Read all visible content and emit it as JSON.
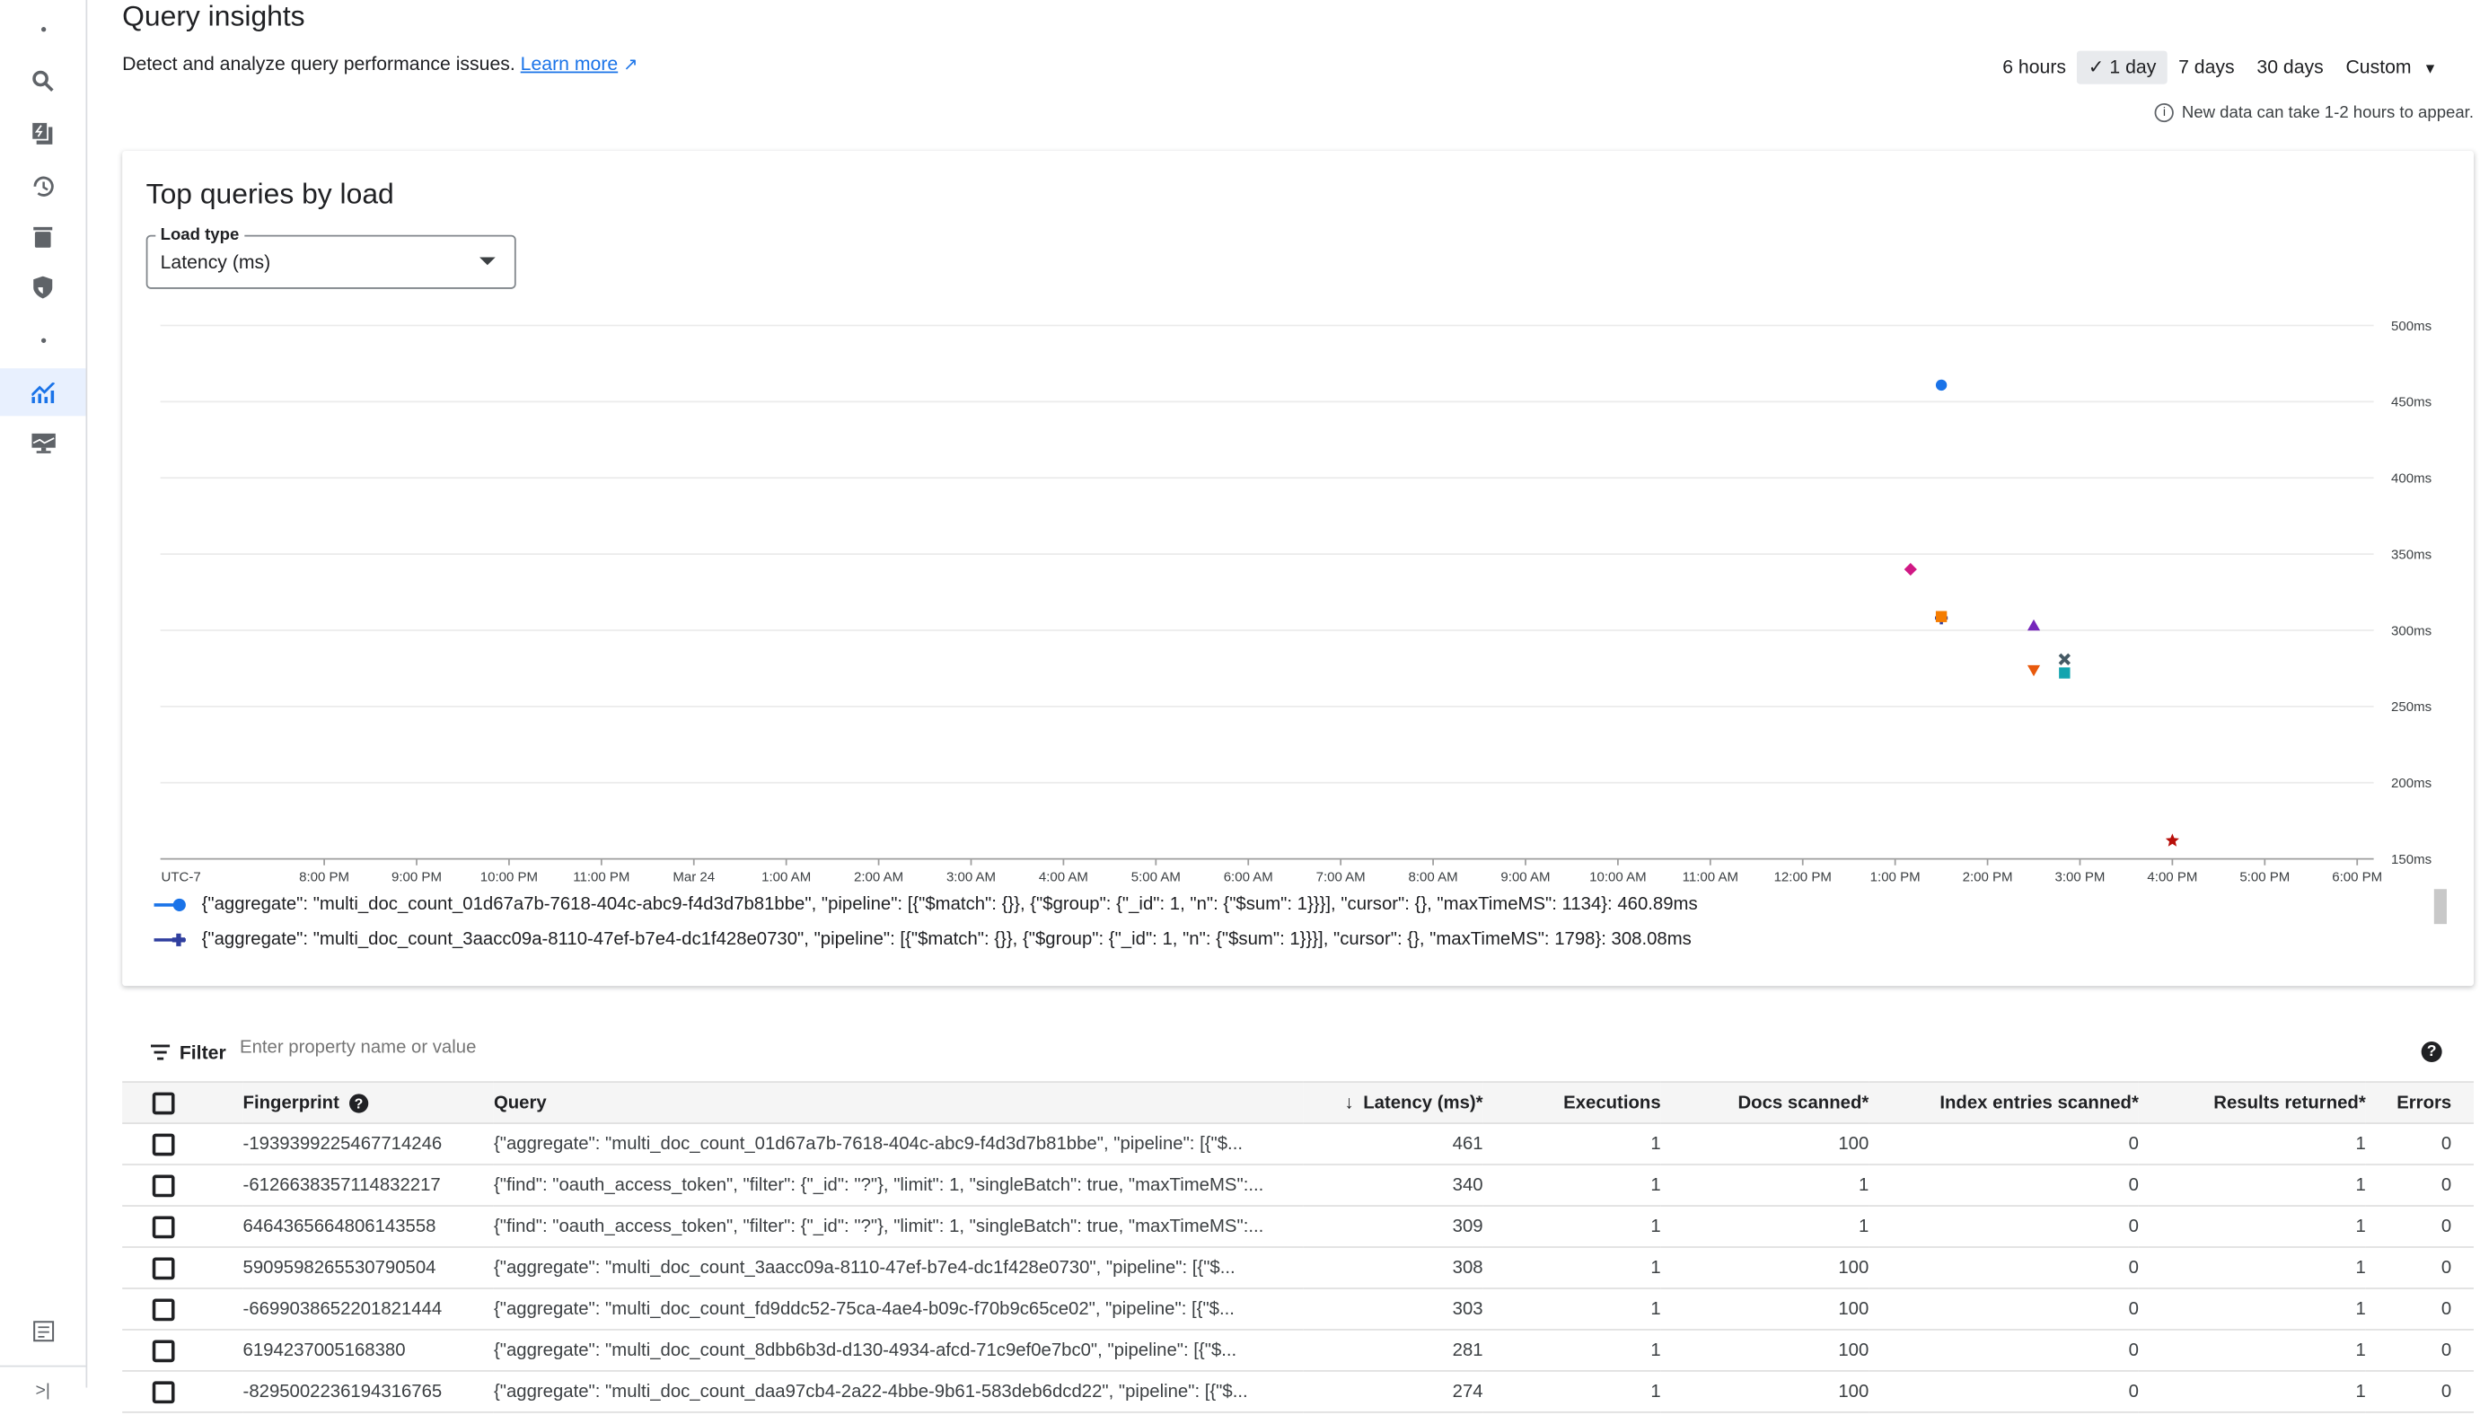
{
  "sidebar": {
    "items": [
      "more",
      "search",
      "quick-actions",
      "history",
      "delete",
      "security",
      "more2",
      "query-insights",
      "monitoring"
    ],
    "active": "query-insights",
    "bottom": [
      "release-notes",
      "expand"
    ]
  },
  "header": {
    "title": "Query insights",
    "subtitle": "Detect and analyze query performance issues.",
    "learn_more": "Learn more"
  },
  "time_ranges": {
    "options": [
      "6 hours",
      "1 day",
      "7 days",
      "30 days",
      "Custom"
    ],
    "selected": "1 day"
  },
  "info_note": "New data can take 1-2 hours to appear.",
  "card": {
    "title": "Top queries by load",
    "load_type_label": "Load type",
    "load_type_value": "Latency (ms)"
  },
  "chart_data": {
    "type": "scatter",
    "ylabel": "",
    "xlabel": "",
    "ylim": [
      150,
      500
    ],
    "y_ticks": [
      "150ms",
      "200ms",
      "250ms",
      "300ms",
      "350ms",
      "400ms",
      "450ms",
      "500ms"
    ],
    "x_ticks": [
      "UTC-7",
      "8:00 PM",
      "9:00 PM",
      "10:00 PM",
      "11:00 PM",
      "Mar 24",
      "1:00 AM",
      "2:00 AM",
      "3:00 AM",
      "4:00 AM",
      "5:00 AM",
      "6:00 AM",
      "7:00 AM",
      "8:00 AM",
      "9:00 AM",
      "10:00 AM",
      "11:00 AM",
      "12:00 PM",
      "1:00 PM",
      "2:00 PM",
      "3:00 PM",
      "4:00 PM",
      "5:00 PM",
      "6:00 PM"
    ],
    "grid": true,
    "points": [
      {
        "x": "1:30 PM",
        "y": 460.89,
        "shape": "circle",
        "color": "#1a73e8"
      },
      {
        "x": "1:10 PM",
        "y": 340,
        "shape": "diamond",
        "color": "#d01884"
      },
      {
        "x": "1:30 PM",
        "y": 308.08,
        "shape": "plus",
        "color": "#303f9f"
      },
      {
        "x": "1:30 PM",
        "y": 309,
        "shape": "square",
        "color": "#f57c00"
      },
      {
        "x": "2:30 PM",
        "y": 303,
        "shape": "triangle",
        "color": "#7627bb"
      },
      {
        "x": "2:50 PM",
        "y": 281,
        "shape": "x",
        "color": "#455a64"
      },
      {
        "x": "2:30 PM",
        "y": 274,
        "shape": "triangle-down",
        "color": "#e8590c"
      },
      {
        "x": "2:50 PM",
        "y": 272,
        "shape": "square",
        "color": "#12a4af"
      },
      {
        "x": "4:00 PM",
        "y": 162,
        "shape": "star",
        "color": "#b80f0a"
      }
    ],
    "legend": [
      {
        "name": "{\"aggregate\": \"multi_doc_count_01d67a7b-7618-404c-abc9-f4d3d7b81bbe\", \"pipeline\": [{\"$match\": {}}, {\"$group\": {\"_id\": 1, \"n\": {\"$sum\": 1}}}], \"cursor\": {}, \"maxTimeMS\": 1134}: 460.89ms",
        "color": "#1a73e8",
        "shape": "circle"
      },
      {
        "name": "{\"aggregate\": \"multi_doc_count_3aacc09a-8110-47ef-b7e4-dc1f428e0730\", \"pipeline\": [{\"$match\": {}}, {\"$group\": {\"_id\": 1, \"n\": {\"$sum\": 1}}}], \"cursor\": {}, \"maxTimeMS\": 1798}: 308.08ms",
        "color": "#303f9f",
        "shape": "plus"
      }
    ]
  },
  "filter": {
    "label": "Filter",
    "placeholder": "Enter property name or value"
  },
  "table": {
    "columns": [
      "Fingerprint",
      "Query",
      "Latency (ms)*",
      "Executions",
      "Docs scanned*",
      "Index entries scanned*",
      "Results returned*",
      "Errors"
    ],
    "rows": [
      [
        "-1939399225467714246",
        "{\"aggregate\": \"multi_doc_count_01d67a7b-7618-404c-abc9-f4d3d7b81bbe\", \"pipeline\": [{\"$...",
        "461",
        "1",
        "100",
        "0",
        "1",
        "0"
      ],
      [
        "-6126638357114832217",
        "{\"find\": \"oauth_access_token\", \"filter\": {\"_id\": \"?\"}, \"limit\": 1, \"singleBatch\": true, \"maxTimeMS\":...",
        "340",
        "1",
        "1",
        "0",
        "1",
        "0"
      ],
      [
        "6464365664806143558",
        "{\"find\": \"oauth_access_token\", \"filter\": {\"_id\": \"?\"}, \"limit\": 1, \"singleBatch\": true, \"maxTimeMS\":...",
        "309",
        "1",
        "1",
        "0",
        "1",
        "0"
      ],
      [
        "5909598265530790504",
        "{\"aggregate\": \"multi_doc_count_3aacc09a-8110-47ef-b7e4-dc1f428e0730\", \"pipeline\": [{\"$...",
        "308",
        "1",
        "100",
        "0",
        "1",
        "0"
      ],
      [
        "-6699038652201821444",
        "{\"aggregate\": \"multi_doc_count_fd9ddc52-75ca-4ae4-b09c-f70b9c65ce02\", \"pipeline\": [{\"$...",
        "303",
        "1",
        "100",
        "0",
        "1",
        "0"
      ],
      [
        "6194237005168380",
        "{\"aggregate\": \"multi_doc_count_8dbb6b3d-d130-4934-afcd-71c9ef0e7bc0\", \"pipeline\": [{\"$...",
        "281",
        "1",
        "100",
        "0",
        "1",
        "0"
      ],
      [
        "-8295002236194316765",
        "{\"aggregate\": \"multi_doc_count_daa97cb4-2a22-4bbe-9b61-583deb6dcd22\", \"pipeline\": [{\"$...",
        "274",
        "1",
        "100",
        "0",
        "1",
        "0"
      ]
    ]
  }
}
